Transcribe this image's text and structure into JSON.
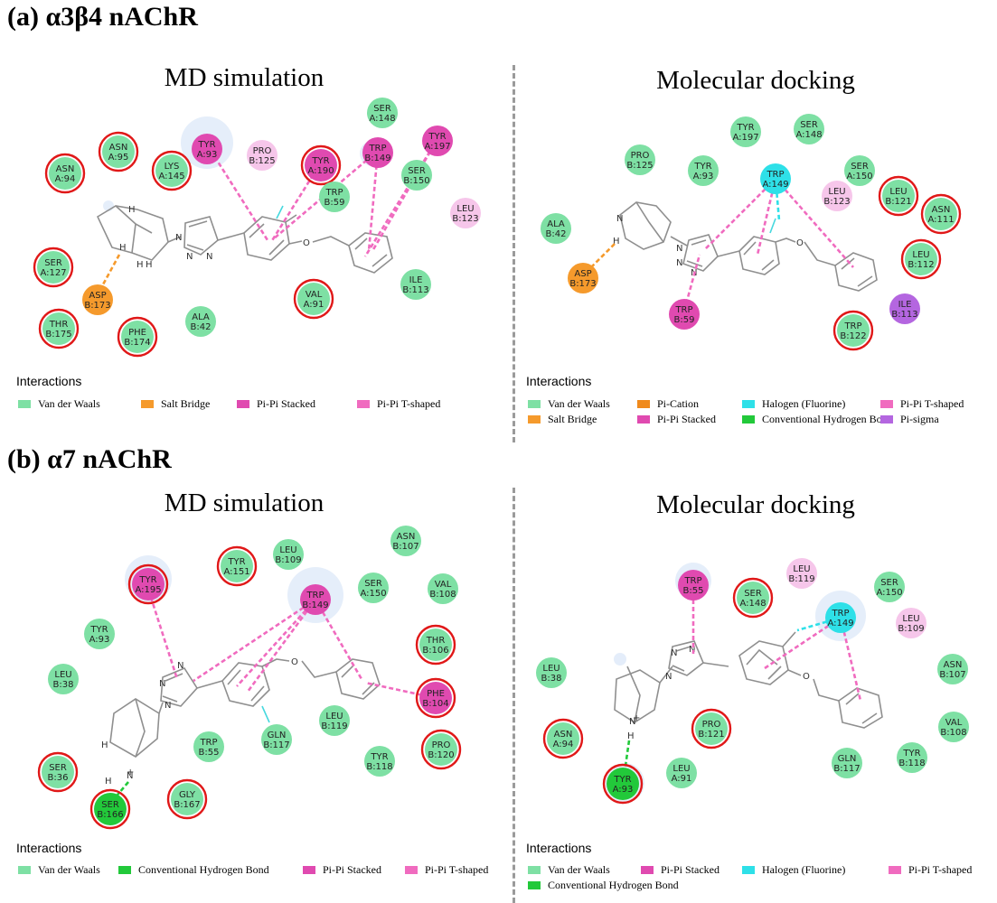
{
  "sections": {
    "a": {
      "title": "(a) α3β4 nAChR",
      "left_title": "MD simulation",
      "right_title": "Molecular docking"
    },
    "b": {
      "title": "(b) α7 nAChR",
      "left_title": "MD simulation",
      "right_title": "Molecular docking"
    }
  },
  "interactions_label": "Interactions",
  "colors": {
    "van_der_waals": "#7ee0a4",
    "salt_bridge": "#f59a2c",
    "pi_pi_stacked": "#e04ab0",
    "pi_pi_t_shaped": "#f06bbf",
    "pi_cation": "#f08a1c",
    "halogen": "#2ee0e8",
    "h_bond": "#22c93a",
    "pi_sigma": "#b466e0",
    "highlight_ring": "#e01818",
    "light_pink": "#f6c6ea"
  },
  "legends": {
    "a_left": [
      {
        "label": "Van der Waals",
        "color": "#7ee0a4"
      },
      {
        "label": "Salt Bridge",
        "color": "#f59a2c"
      },
      {
        "label": "Pi-Pi Stacked",
        "color": "#e04ab0"
      },
      {
        "label": "Pi-Pi T-shaped",
        "color": "#f06bbf"
      }
    ],
    "a_right": [
      {
        "label": "Van der Waals",
        "color": "#7ee0a4"
      },
      {
        "label": "Pi-Cation",
        "color": "#f08a1c"
      },
      {
        "label": "Halogen (Fluorine)",
        "color": "#2ee0e8"
      },
      {
        "label": "Pi-Pi T-shaped",
        "color": "#f06bbf"
      },
      {
        "label": "Salt Bridge",
        "color": "#f59a2c"
      },
      {
        "label": "Pi-Pi Stacked",
        "color": "#e04ab0"
      },
      {
        "label": "Conventional Hydrogen Bond",
        "color": "#22c93a"
      },
      {
        "label": "Pi-sigma",
        "color": "#b466e0"
      }
    ],
    "b_left": [
      {
        "label": "Van der Waals",
        "color": "#7ee0a4"
      },
      {
        "label": "Conventional Hydrogen Bond",
        "color": "#22c93a"
      },
      {
        "label": "Pi-Pi Stacked",
        "color": "#e04ab0"
      },
      {
        "label": "Pi-Pi T-shaped",
        "color": "#f06bbf"
      }
    ],
    "b_right": [
      {
        "label": "Van der Waals",
        "color": "#7ee0a4"
      },
      {
        "label": "Pi-Pi Stacked",
        "color": "#e04ab0"
      },
      {
        "label": "Halogen (Fluorine)",
        "color": "#2ee0e8"
      },
      {
        "label": "Pi-Pi T-shaped",
        "color": "#f06bbf"
      },
      {
        "label": "Conventional Hydrogen Bond",
        "color": "#22c93a"
      }
    ]
  },
  "residues": {
    "a_left": [
      {
        "l1": "ASN",
        "l2": "A:94",
        "type": "vdw",
        "ring": true
      },
      {
        "l1": "ASN",
        "l2": "A:95",
        "type": "vdw",
        "ring": true
      },
      {
        "l1": "LYS",
        "l2": "A:145",
        "type": "vdw",
        "ring": true
      },
      {
        "l1": "TYR",
        "l2": "A:93",
        "type": "stack",
        "ring": false
      },
      {
        "l1": "PRO",
        "l2": "B:125",
        "type": "pink",
        "ring": false
      },
      {
        "l1": "TYR",
        "l2": "A:190",
        "type": "stack",
        "ring": true
      },
      {
        "l1": "TRP",
        "l2": "B:149",
        "type": "stack",
        "ring": false
      },
      {
        "l1": "SER",
        "l2": "A:148",
        "type": "vdw",
        "ring": false
      },
      {
        "l1": "TYR",
        "l2": "A:197",
        "type": "stack",
        "ring": false
      },
      {
        "l1": "SER",
        "l2": "B:150",
        "type": "vdw",
        "ring": false
      },
      {
        "l1": "TRP",
        "l2": "B:59",
        "type": "vdw",
        "ring": false
      },
      {
        "l1": "LEU",
        "l2": "B:123",
        "type": "pink",
        "ring": false
      },
      {
        "l1": "SER",
        "l2": "A:127",
        "type": "vdw",
        "ring": true
      },
      {
        "l1": "ASP",
        "l2": "B:173",
        "type": "salt",
        "ring": false
      },
      {
        "l1": "THR",
        "l2": "B:175",
        "type": "vdw",
        "ring": true
      },
      {
        "l1": "PHE",
        "l2": "B:174",
        "type": "vdw",
        "ring": true
      },
      {
        "l1": "ALA",
        "l2": "B:42",
        "type": "vdw",
        "ring": false
      },
      {
        "l1": "VAL",
        "l2": "A:91",
        "type": "vdw",
        "ring": true
      },
      {
        "l1": "ILE",
        "l2": "B:113",
        "type": "vdw",
        "ring": false
      }
    ],
    "a_right": [
      {
        "l1": "TYR",
        "l2": "A:197",
        "type": "vdw",
        "ring": false
      },
      {
        "l1": "SER",
        "l2": "A:148",
        "type": "vdw",
        "ring": false
      },
      {
        "l1": "PRO",
        "l2": "B:125",
        "type": "vdw",
        "ring": false
      },
      {
        "l1": "TYR",
        "l2": "A:93",
        "type": "vdw",
        "ring": false
      },
      {
        "l1": "TRP",
        "l2": "A:149",
        "type": "halogen",
        "ring": false
      },
      {
        "l1": "SER",
        "l2": "A:150",
        "type": "vdw",
        "ring": false
      },
      {
        "l1": "LEU",
        "l2": "B:123",
        "type": "pink",
        "ring": false
      },
      {
        "l1": "LEU",
        "l2": "B:121",
        "type": "vdw",
        "ring": true
      },
      {
        "l1": "ASN",
        "l2": "A:111",
        "type": "vdw",
        "ring": true
      },
      {
        "l1": "ALA",
        "l2": "B:42",
        "type": "vdw",
        "ring": false
      },
      {
        "l1": "LEU",
        "l2": "B:112",
        "type": "vdw",
        "ring": true
      },
      {
        "l1": "ASP",
        "l2": "B:173",
        "type": "salt",
        "ring": false
      },
      {
        "l1": "ILE",
        "l2": "B:113",
        "type": "sigma",
        "ring": false
      },
      {
        "l1": "TRP",
        "l2": "B:59",
        "type": "stack",
        "ring": false
      },
      {
        "l1": "TRP",
        "l2": "B:122",
        "type": "vdw",
        "ring": true
      }
    ],
    "b_left": [
      {
        "l1": "ASN",
        "l2": "B:107",
        "type": "vdw",
        "ring": false
      },
      {
        "l1": "LEU",
        "l2": "B:109",
        "type": "vdw",
        "ring": false
      },
      {
        "l1": "TYR",
        "l2": "A:151",
        "type": "vdw",
        "ring": true
      },
      {
        "l1": "TYR",
        "l2": "A:195",
        "type": "stack",
        "ring": true
      },
      {
        "l1": "TRP",
        "l2": "B:149",
        "type": "stack",
        "ring": false
      },
      {
        "l1": "SER",
        "l2": "A:150",
        "type": "vdw",
        "ring": false
      },
      {
        "l1": "VAL",
        "l2": "B:108",
        "type": "vdw",
        "ring": false
      },
      {
        "l1": "TYR",
        "l2": "A:93",
        "type": "vdw",
        "ring": false
      },
      {
        "l1": "THR",
        "l2": "B:106",
        "type": "vdw",
        "ring": true
      },
      {
        "l1": "LEU",
        "l2": "B:38",
        "type": "vdw",
        "ring": false
      },
      {
        "l1": "PHE",
        "l2": "B:104",
        "type": "stack",
        "ring": true
      },
      {
        "l1": "LEU",
        "l2": "B:119",
        "type": "vdw",
        "ring": false
      },
      {
        "l1": "TRP",
        "l2": "B:55",
        "type": "vdw",
        "ring": false
      },
      {
        "l1": "GLN",
        "l2": "B:117",
        "type": "vdw",
        "ring": false
      },
      {
        "l1": "PRO",
        "l2": "B:120",
        "type": "vdw",
        "ring": true
      },
      {
        "l1": "TYR",
        "l2": "B:118",
        "type": "vdw",
        "ring": false
      },
      {
        "l1": "SER",
        "l2": "B:36",
        "type": "vdw",
        "ring": true
      },
      {
        "l1": "SER",
        "l2": "B:166",
        "type": "hbond",
        "ring": true
      },
      {
        "l1": "GLY",
        "l2": "B:167",
        "type": "vdw",
        "ring": true
      }
    ],
    "b_right": [
      {
        "l1": "TRP",
        "l2": "B:55",
        "type": "stack",
        "ring": false
      },
      {
        "l1": "SER",
        "l2": "A:148",
        "type": "vdw",
        "ring": true
      },
      {
        "l1": "LEU",
        "l2": "B:119",
        "type": "pink",
        "ring": false
      },
      {
        "l1": "SER",
        "l2": "A:150",
        "type": "vdw",
        "ring": false
      },
      {
        "l1": "TRP",
        "l2": "A:149",
        "type": "halogen",
        "ring": false
      },
      {
        "l1": "LEU",
        "l2": "B:109",
        "type": "pink",
        "ring": false
      },
      {
        "l1": "LEU",
        "l2": "B:38",
        "type": "vdw",
        "ring": false
      },
      {
        "l1": "ASN",
        "l2": "B:107",
        "type": "vdw",
        "ring": false
      },
      {
        "l1": "ASN",
        "l2": "A:94",
        "type": "vdw",
        "ring": true
      },
      {
        "l1": "PRO",
        "l2": "B:121",
        "type": "vdw",
        "ring": true
      },
      {
        "l1": "VAL",
        "l2": "B:108",
        "type": "vdw",
        "ring": false
      },
      {
        "l1": "LEU",
        "l2": "A:91",
        "type": "vdw",
        "ring": false
      },
      {
        "l1": "GLN",
        "l2": "B:117",
        "type": "vdw",
        "ring": false
      },
      {
        "l1": "TYR",
        "l2": "B:118",
        "type": "vdw",
        "ring": false
      },
      {
        "l1": "TYR",
        "l2": "A:93",
        "type": "hbond",
        "ring": true
      }
    ]
  }
}
